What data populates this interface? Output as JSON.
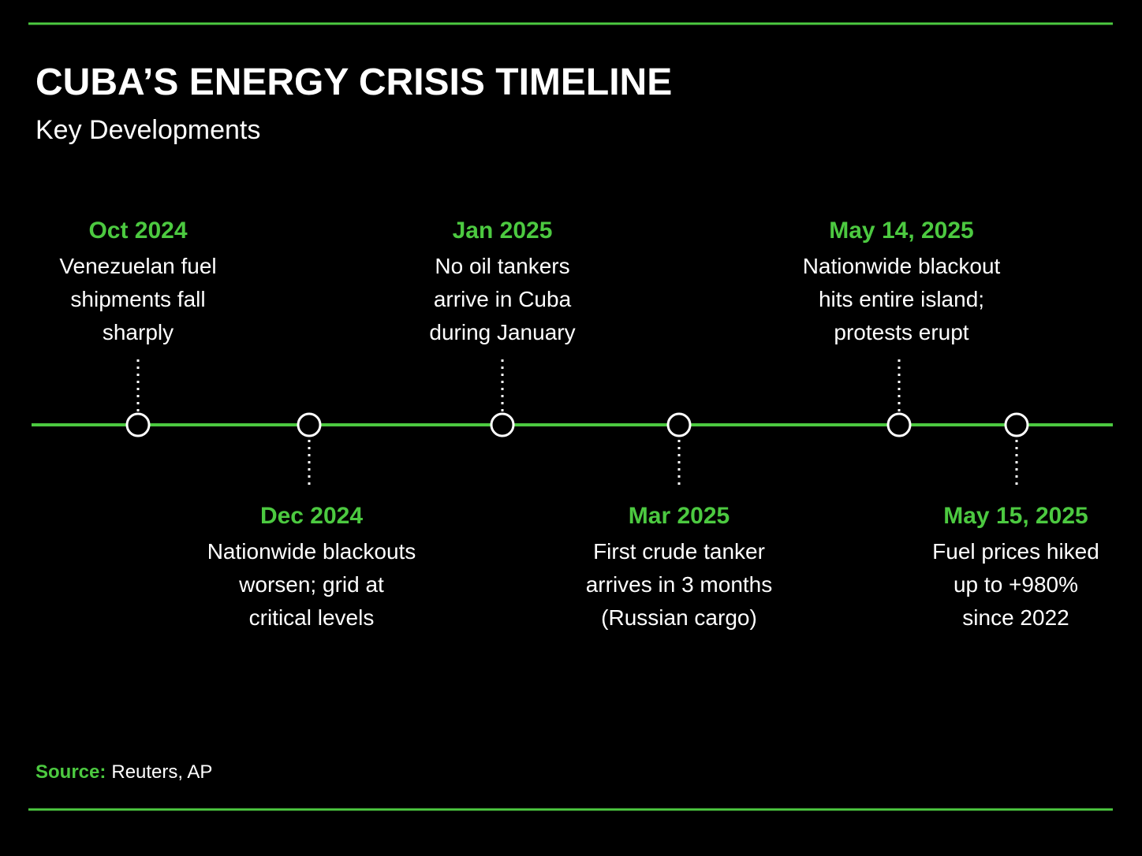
{
  "header": {
    "title": "CUBA’S ENERGY CRISIS TIMELINE",
    "subtitle": "Key Developments"
  },
  "events": [
    {
      "date": "Oct 2024",
      "lines": [
        "Venezuelan fuel",
        "shipments fall",
        "sharply"
      ]
    },
    {
      "date": "Dec 2024",
      "lines": [
        "Nationwide blackouts",
        "worsen; grid at",
        "critical levels"
      ]
    },
    {
      "date": "Jan 2025",
      "lines": [
        "No oil tankers",
        "arrive in Cuba",
        "during January"
      ]
    },
    {
      "date": "Mar 2025",
      "lines": [
        "First crude tanker",
        "arrives in 3 months",
        "(Russian cargo)"
      ]
    },
    {
      "date": "May 14, 2025",
      "lines": [
        "Nationwide blackout",
        "hits entire island;",
        "protests erupt"
      ]
    },
    {
      "date": "May 15, 2025",
      "lines": [
        "Fuel prices hiked",
        "up to +980%",
        "since 2022"
      ]
    }
  ],
  "source": {
    "label": "Source:",
    "text": "Reuters, AP"
  }
}
